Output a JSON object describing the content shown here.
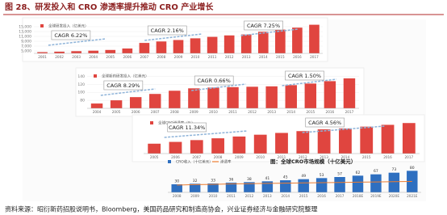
{
  "title": "图 28、研发投入和 CRO 渗透率提升推动 CRO 产业增长",
  "source": "资料来源：昭衍新药招股说明书，Bloomberg，美国药品研究和制造商协会，兴业证券经济与金融研究院整理",
  "chart_data": [
    {
      "type": "bar",
      "categories": [
        "2001",
        "2002",
        "2003",
        "2004",
        "2005",
        "2006",
        "2007",
        "2008",
        "2009",
        "2010",
        "2011",
        "2012",
        "2013",
        "2014",
        "2015",
        "2016",
        "2017"
      ],
      "series": [
        {
          "name": "全球研发投入（亿美元）",
          "color": "#e0453f",
          "values": [
            4500,
            4700,
            4900,
            5100,
            5400,
            6000,
            8300,
            8900,
            9500,
            10200,
            10800,
            11400,
            11800,
            12900,
            13800,
            14600,
            15800
          ]
        }
      ],
      "ylim": [
        4000,
        16000
      ],
      "yticks": [
        {
          "value": 5000,
          "label": "5,000"
        },
        {
          "value": 7000,
          "label": "7,000"
        },
        {
          "value": 9000,
          "label": "9,000"
        },
        {
          "value": 11000,
          "label": "11,000"
        },
        {
          "value": 13000,
          "label": "13,000"
        },
        {
          "value": 15000,
          "label": "15,000"
        }
      ],
      "annotations": [
        "CAGR 6.22%",
        "CAGR 2.16%",
        "CAGR 7.25%"
      ]
    },
    {
      "type": "bar",
      "categories": [
        "2004",
        "2005",
        "2006",
        "2007",
        "2008",
        "2009",
        "2010",
        "2011",
        "2012",
        "2013",
        "2014",
        "2015",
        "2016",
        "2017"
      ],
      "series": [
        {
          "name": "全球新药研发投入（亿美元）",
          "color": "#e0453f",
          "values": [
            72,
            80,
            88,
            96,
            104,
            110,
            112,
            113,
            114,
            115,
            118,
            122,
            128,
            135
          ]
        }
      ],
      "ylim": [
        60,
        145
      ],
      "yticks": [
        80,
        100,
        120,
        140
      ],
      "annotations": [
        "CAGR 8.29%",
        "CAGR 0.66%",
        "CAGR 1.50%"
      ]
    },
    {
      "type": "bar",
      "categories": [
        "2005",
        "2006",
        "2007",
        "2008",
        "2009",
        "2010",
        "2011",
        "2012",
        "2013",
        "2014",
        "2015",
        "2016",
        "2017"
      ],
      "series": [
        {
          "name": "全球CRO渗透率（%）",
          "color": "#e0453f",
          "values": [
            11,
            13,
            15,
            17,
            19,
            21,
            23,
            25,
            27,
            28,
            30,
            32,
            34
          ]
        }
      ],
      "ylim": [
        0,
        36
      ],
      "annotations": [
        "CAGR 11.34%",
        "CAGR 4.56%"
      ]
    },
    {
      "type": "combo",
      "title": "图：全球CRO市场规模（十亿美元）",
      "categories": [
        "2008",
        "2009",
        "2010",
        "2011",
        "2012",
        "2013",
        "2014",
        "2015",
        "2016",
        "2017",
        "2018E",
        "2019E",
        "2020E",
        "2021E"
      ],
      "series": [
        {
          "name": "CRO收入（十亿美元）",
          "color": "#2e6fc0",
          "values": [
            30,
            32,
            33,
            36,
            38,
            41,
            45,
            49,
            53,
            57,
            62,
            67,
            73,
            80
          ]
        },
        {
          "name": "渗透率",
          "color": "#ed7d31",
          "axis": "y2",
          "values": [
            0.3,
            0.32,
            0.33,
            0.35,
            0.36,
            0.37,
            0.38,
            0.39,
            0.4,
            0.41,
            0.42,
            0.43,
            0.44,
            0.45
          ]
        }
      ],
      "ylim": [
        0,
        90
      ],
      "y2lim": [
        0,
        1
      ],
      "data_labels": true
    }
  ]
}
